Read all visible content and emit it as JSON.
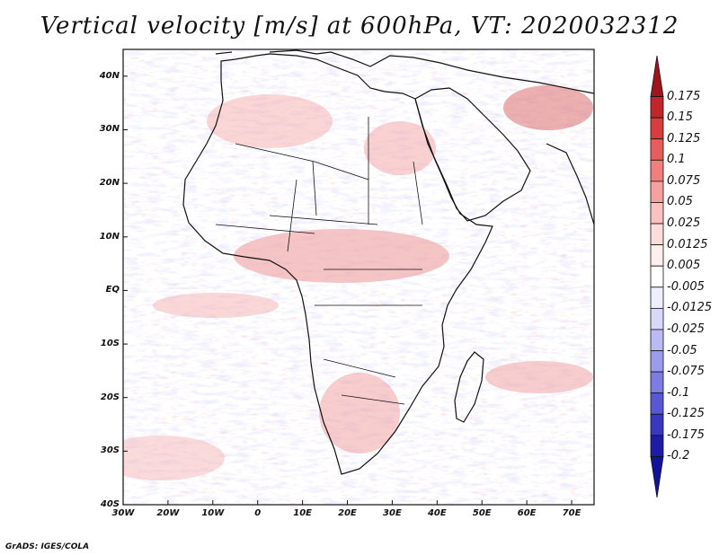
{
  "title": "Vertical velocity [m/s] at 600hPa, VT: 2020032312",
  "credit": "GrADS: IGES/COLA",
  "map": {
    "lat_labels": [
      "40N",
      "30N",
      "20N",
      "10N",
      "EQ",
      "10S",
      "20S",
      "30S",
      "40S"
    ],
    "lon_labels": [
      "30W",
      "20W",
      "10W",
      "0",
      "10E",
      "20E",
      "30E",
      "40E",
      "50E",
      "60E",
      "70E"
    ],
    "lat_range": [
      -40,
      45
    ],
    "lon_range": [
      -30,
      75
    ]
  },
  "colorbar": {
    "labels": [
      "0.175",
      "0.15",
      "0.125",
      "0.1",
      "0.075",
      "0.05",
      "0.025",
      "0.0125",
      "0.005",
      "-0.005",
      "-0.0125",
      "-0.025",
      "-0.05",
      "-0.075",
      "-0.1",
      "-0.125",
      "-0.175",
      "-0.2"
    ],
    "colors": [
      "#a0141e",
      "#c2262a",
      "#d83c3c",
      "#e85c5c",
      "#f27e7e",
      "#f7a0a0",
      "#fbc0c0",
      "#fddcdc",
      "#ffeeee",
      "#ffffff",
      "#eeeeff",
      "#d8d8fb",
      "#babaf5",
      "#9c9cee",
      "#7c7ce4",
      "#5858d6",
      "#3838c2",
      "#1c1ca8",
      "#12129a"
    ]
  }
}
